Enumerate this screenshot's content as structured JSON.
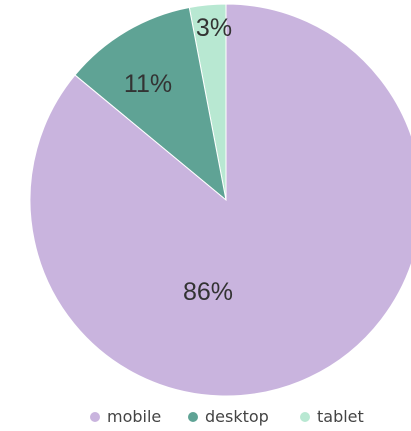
{
  "chart_data": {
    "type": "pie",
    "title": "",
    "slices": [
      {
        "label": "mobile",
        "value": 86,
        "display": "86%",
        "color": "#c9b4de"
      },
      {
        "label": "desktop",
        "value": 11,
        "display": "11%",
        "color": "#5fa395"
      },
      {
        "label": "tablet",
        "value": 3,
        "display": "3%",
        "color": "#b8e8d2"
      }
    ],
    "legend": {
      "position": "bottom",
      "items": [
        "mobile",
        "desktop",
        "tablet"
      ]
    },
    "start_angle": "12 o'clock",
    "direction": "clockwise",
    "order": [
      "tablet",
      "desktop",
      "mobile"
    ]
  }
}
